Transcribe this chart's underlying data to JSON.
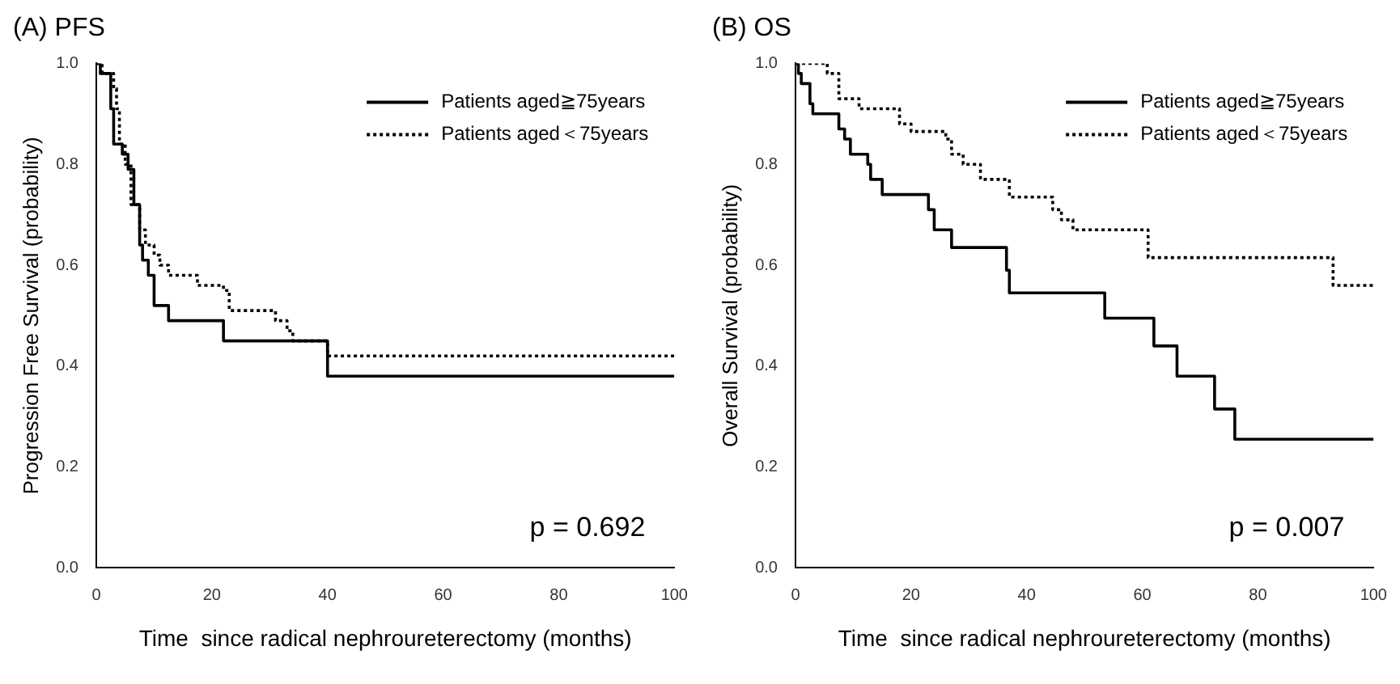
{
  "chart_data": [
    {
      "type": "step",
      "title": "(A) PFS",
      "xlabel": "Time  since radical nephroureterectomy (months)",
      "ylabel": "Progression Free Survival (probability)",
      "annotations": [
        "p = 0.692"
      ],
      "xlim": [
        0,
        100
      ],
      "xticks": [
        0,
        20,
        40,
        60,
        80,
        100
      ],
      "ylim": [
        0,
        1
      ],
      "yticks": [
        {
          "value": 0,
          "label": "0.0"
        },
        {
          "value": 0.2,
          "label": "0.2"
        },
        {
          "value": 0.4,
          "label": "0.4"
        },
        {
          "value": 0.6,
          "label": "0.6"
        },
        {
          "value": 0.8,
          "label": "0.8"
        },
        {
          "value": 1,
          "label": "1.0"
        }
      ],
      "legend": "top right",
      "marker": "none",
      "series": [
        {
          "name": "Patients aged≧75years",
          "color": "#000000",
          "line_style": "solid",
          "x": [
            0,
            0.7,
            2.5,
            3,
            4.5,
            5.5,
            6.5,
            7.5,
            8,
            9,
            10,
            12.5,
            22,
            40,
            100
          ],
          "values": [
            1,
            0.98,
            0.91,
            0.84,
            0.82,
            0.79,
            0.72,
            0.64,
            0.61,
            0.58,
            0.52,
            0.49,
            0.45,
            0.38,
            0.38
          ]
        },
        {
          "name": "Patients aged＜75years",
          "color": "#000000",
          "line_style": "dotted",
          "x": [
            0,
            1,
            3,
            3.5,
            4,
            5,
            6,
            7.5,
            8.5,
            10,
            11,
            12.5,
            17.5,
            22,
            23,
            31,
            33,
            34,
            40,
            100
          ],
          "values": [
            1,
            0.98,
            0.95,
            0.91,
            0.84,
            0.8,
            0.72,
            0.67,
            0.64,
            0.62,
            0.6,
            0.58,
            0.56,
            0.55,
            0.51,
            0.49,
            0.47,
            0.45,
            0.42,
            0.42
          ]
        }
      ]
    },
    {
      "type": "step",
      "title": "(B) OS",
      "xlabel": "Time  since radical nephroureterectomy (months)",
      "ylabel": "Overall Survival (probability)",
      "annotations": [
        "p = 0.007"
      ],
      "xlim": [
        0,
        100
      ],
      "xticks": [
        0,
        20,
        40,
        60,
        80,
        100
      ],
      "ylim": [
        0,
        1
      ],
      "yticks": [
        {
          "value": 0,
          "label": "0.0"
        },
        {
          "value": 0.2,
          "label": "0.2"
        },
        {
          "value": 0.4,
          "label": "0.4"
        },
        {
          "value": 0.6,
          "label": "0.6"
        },
        {
          "value": 0.8,
          "label": "0.8"
        },
        {
          "value": 1,
          "label": "1.0"
        }
      ],
      "legend": "top right",
      "marker": "none",
      "series": [
        {
          "name": "Patients aged≧75years",
          "color": "#000000",
          "line_style": "solid",
          "x": [
            0,
            0.5,
            1,
            2.5,
            3,
            7.5,
            8.5,
            9.5,
            12.5,
            13,
            15,
            23,
            24,
            27,
            36.5,
            37,
            53.5,
            62,
            66,
            72.5,
            76,
            100
          ],
          "values": [
            1,
            0.98,
            0.96,
            0.92,
            0.9,
            0.87,
            0.85,
            0.82,
            0.8,
            0.77,
            0.74,
            0.71,
            0.67,
            0.635,
            0.59,
            0.545,
            0.495,
            0.44,
            0.38,
            0.315,
            0.255,
            0.255
          ]
        },
        {
          "name": "Patients aged＜75years",
          "color": "#000000",
          "line_style": "dotted",
          "x": [
            0,
            5.5,
            7.5,
            11,
            18,
            20,
            26,
            27,
            29,
            32,
            37,
            44.5,
            46,
            48,
            61,
            93,
            100
          ],
          "values": [
            1,
            0.98,
            0.93,
            0.91,
            0.88,
            0.865,
            0.85,
            0.82,
            0.8,
            0.77,
            0.735,
            0.71,
            0.69,
            0.67,
            0.615,
            0.56,
            0.56
          ]
        }
      ]
    }
  ]
}
